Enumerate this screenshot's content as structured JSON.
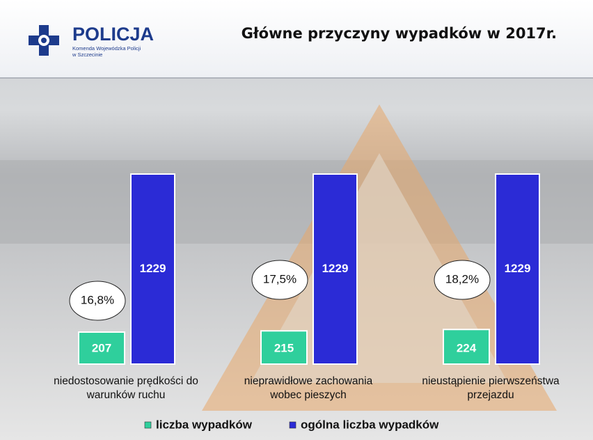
{
  "header": {
    "logo": "POLICJA",
    "logo_sub": [
      "Komenda Wojewódzka Policji",
      "w Szczecinie"
    ]
  },
  "chart_data": {
    "type": "bar",
    "title": "Główne przyczyny wypadków w 2017r.",
    "categories": [
      "niedostosowanie prędkości do warunków ruchu",
      "nieprawidłowe zachowania wobec pieszych",
      "nieustąpienie pierwszeństwa przejazdu"
    ],
    "series": [
      {
        "name": "liczba wypadków",
        "color": "#2fcf9c",
        "values": [
          207,
          215,
          224
        ]
      },
      {
        "name": "ogólna liczba wypadków",
        "color": "#2b2bd6",
        "values": [
          1229,
          1229,
          1229
        ]
      }
    ],
    "annotations": [
      "16,8%",
      "17,5%",
      "18,2%"
    ]
  }
}
